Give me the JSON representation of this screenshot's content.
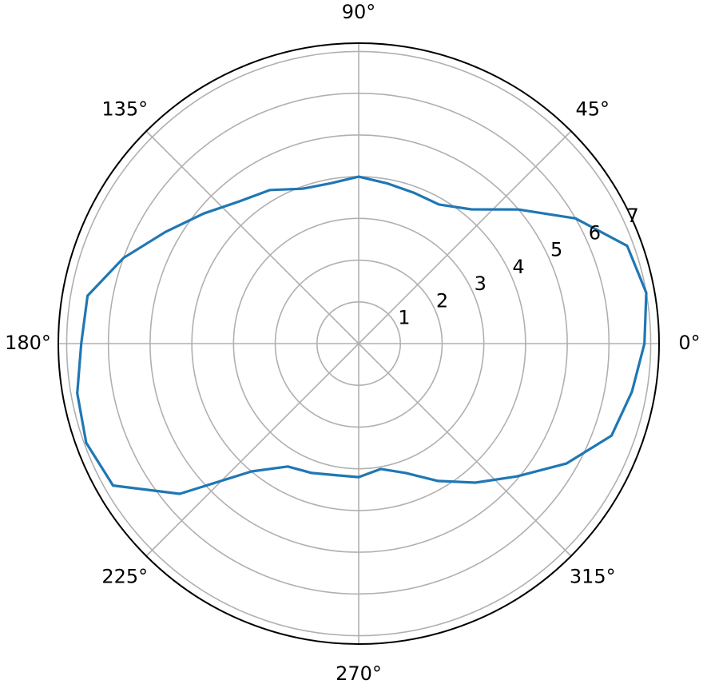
{
  "chart_data": {
    "type": "polar-line",
    "theta": [
      0,
      10,
      20,
      30,
      40,
      50,
      60,
      70,
      80,
      90,
      100,
      110,
      120,
      130,
      140,
      150,
      160,
      170,
      180,
      190,
      200,
      210,
      220,
      230,
      240,
      250,
      260,
      270,
      280,
      290,
      300,
      310,
      320,
      330,
      340,
      350
    ],
    "series": [
      {
        "color": "#1f77b4",
        "values": [
          6.85,
          7.0,
          6.85,
          6.0,
          5.0,
          4.2,
          3.85,
          3.85,
          3.9,
          4.0,
          3.9,
          3.95,
          4.25,
          4.45,
          4.85,
          5.35,
          6.0,
          6.6,
          6.65,
          6.85,
          6.95,
          6.8,
          5.6,
          4.0,
          3.4,
          3.3,
          3.2,
          3.2,
          3.05,
          3.3,
          3.8,
          4.35,
          4.95,
          5.75,
          6.45,
          6.65
        ]
      }
    ],
    "rlim": [
      0,
      7.2
    ],
    "rticks": [
      1,
      2,
      3,
      4,
      5,
      6,
      7
    ],
    "thetaticks": [
      {
        "value": 0,
        "label": "0°"
      },
      {
        "value": 45,
        "label": "45°"
      },
      {
        "value": 90,
        "label": "90°"
      },
      {
        "value": 135,
        "label": "135°"
      },
      {
        "value": 180,
        "label": "180°"
      },
      {
        "value": 225,
        "label": "225°"
      },
      {
        "value": 270,
        "label": "270°"
      },
      {
        "value": 315,
        "label": "315°"
      }
    ],
    "grid": true
  }
}
